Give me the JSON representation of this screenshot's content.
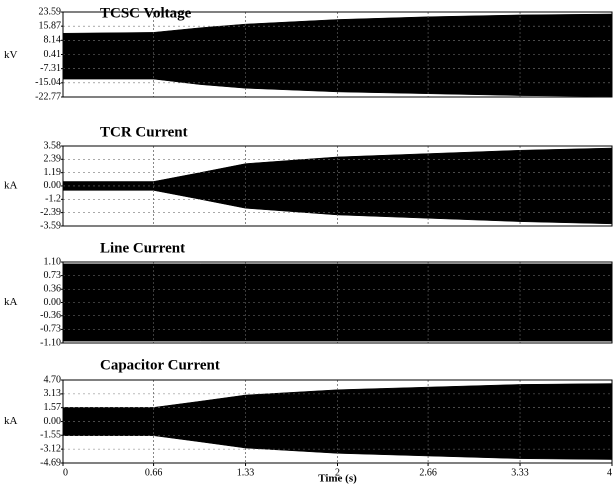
{
  "chart_data": [
    {
      "type": "area",
      "title": "TCSC Voltage",
      "ylabel": "kV",
      "x": [
        0,
        0.66,
        1,
        1.33,
        2,
        2.66,
        3.33,
        4
      ],
      "series": [
        {
          "color": "#000000",
          "values": [
            12,
            12.5,
            15,
            17,
            19.5,
            21,
            22,
            22.5
          ]
        },
        {
          "color": "#000000",
          "values": [
            -13,
            -13,
            -16,
            -18,
            -20,
            -21,
            -22,
            -22.5
          ]
        }
      ],
      "xlim": [
        0,
        4
      ],
      "ylim": [
        -22.77,
        23.59
      ],
      "yticks": [
        23.59,
        15.87,
        8.14,
        0.41,
        -7.31,
        -15.04,
        -22.77
      ],
      "grid": true
    },
    {
      "type": "area",
      "title": "TCR Current",
      "ylabel": "kA",
      "x": [
        0,
        0.66,
        1,
        1.33,
        2,
        2.66,
        3.33,
        4
      ],
      "series": [
        {
          "color": "#000000",
          "values": [
            0.4,
            0.4,
            1.2,
            2.0,
            2.6,
            2.9,
            3.2,
            3.4
          ]
        },
        {
          "color": "#000000",
          "values": [
            -0.4,
            -0.4,
            -1.2,
            -2.0,
            -2.6,
            -2.9,
            -3.2,
            -3.4
          ]
        }
      ],
      "xlim": [
        0,
        4
      ],
      "ylim": [
        -3.59,
        3.58
      ],
      "yticks": [
        3.58,
        2.39,
        1.19,
        {
          "value": 0,
          "label": "0.00"
        },
        -1.2,
        -2.39,
        -3.59
      ],
      "grid": true
    },
    {
      "type": "area",
      "title": "Line Current",
      "ylabel": "kA",
      "x": [
        0,
        0.66,
        1,
        1.33,
        2,
        2.66,
        3.33,
        4
      ],
      "series": [
        {
          "color": "#000000",
          "values": [
            1.05,
            1.05,
            1.05,
            1.05,
            1.05,
            1.05,
            1.05,
            1.05
          ]
        },
        {
          "color": "#000000",
          "values": [
            -1.05,
            -1.05,
            -1.05,
            -1.05,
            -1.05,
            -1.05,
            -1.05,
            -1.05
          ]
        }
      ],
      "xlim": [
        0,
        4
      ],
      "ylim": [
        -1.1,
        1.1
      ],
      "yticks": [
        {
          "value": 1.1,
          "label": "1.10"
        },
        0.73,
        0.36,
        {
          "value": 0,
          "label": "0.00"
        },
        -0.36,
        -0.73,
        {
          "value": -1.1,
          "label": "-1.10"
        }
      ],
      "grid": true
    },
    {
      "type": "area",
      "title": "Capacitor Current",
      "ylabel": "kA",
      "xlabel": "Time (s)",
      "x": [
        0,
        0.66,
        1,
        1.33,
        2,
        2.66,
        3.33,
        4
      ],
      "series": [
        {
          "color": "#000000",
          "values": [
            1.6,
            1.6,
            2.3,
            3.0,
            3.6,
            3.9,
            4.2,
            4.3
          ]
        },
        {
          "color": "#000000",
          "values": [
            -1.6,
            -1.6,
            -2.3,
            -3.0,
            -3.6,
            -3.9,
            -4.2,
            -4.3
          ]
        }
      ],
      "xlim": [
        0,
        4
      ],
      "ylim": [
        -4.69,
        4.7
      ],
      "yticks": [
        {
          "value": 4.7,
          "label": "4.70"
        },
        3.13,
        1.57,
        {
          "value": 0,
          "label": "0.00"
        },
        -1.55,
        -3.12,
        -4.69
      ],
      "xticks": [
        0,
        0.66,
        1.33,
        2,
        2.66,
        3.33,
        4
      ],
      "grid": true
    }
  ]
}
